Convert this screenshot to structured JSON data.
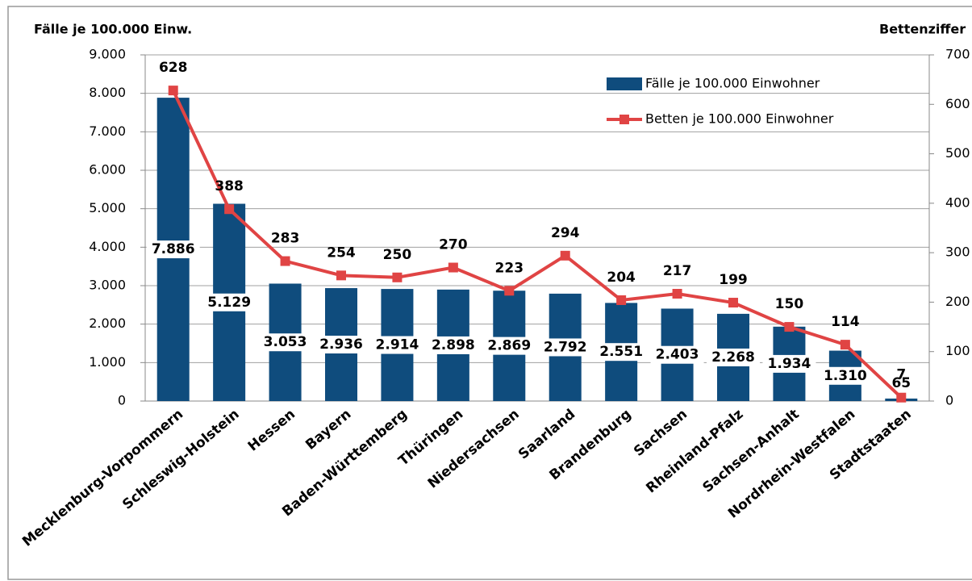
{
  "chart_data": {
    "type": "bar_line",
    "y_label": "Fälle je 100.000 Einw.",
    "y2_label": "Bettenziffer",
    "categories": [
      "Mecklenburg-Vorpommern",
      "Schleswig-Holstein",
      "Hessen",
      "Bayern",
      "Baden-Württemberg",
      "Thüringen",
      "Niedersachsen",
      "Saarland",
      "Brandenburg",
      "Sachsen",
      "Rheinland-Pfalz",
      "Sachsen-Anhalt",
      "Nordrhein-Westfalen",
      "Stadtstaaten"
    ],
    "series": [
      {
        "name": "Fälle je 100.000 Einwohner",
        "type": "bar",
        "color": "#0f4c7d",
        "values": [
          7886,
          5129,
          3053,
          2936,
          2914,
          2898,
          2869,
          2792,
          2551,
          2403,
          2268,
          1934,
          1310,
          65
        ],
        "value_labels": [
          "7.886",
          "5.129",
          "3.053",
          "2.936",
          "2.914",
          "2.898",
          "2.869",
          "2.792",
          "2.551",
          "2.403",
          "2.268",
          "1.934",
          "1.310",
          "65"
        ]
      },
      {
        "name": "Betten je 100.000 Einwohner",
        "type": "line",
        "axis": "y2",
        "color": "#e04444",
        "values": [
          628,
          388,
          283,
          254,
          250,
          270,
          223,
          294,
          204,
          217,
          199,
          150,
          114,
          7
        ]
      }
    ],
    "ylim": [
      0,
      9000
    ],
    "yticks": [
      0,
      {
        "value": 1000,
        "label": "1.000"
      },
      {
        "value": 2000,
        "label": "2.000"
      },
      {
        "value": 3000,
        "label": "3.000"
      },
      {
        "value": 4000,
        "label": "4.000"
      },
      {
        "value": 5000,
        "label": "5.000"
      },
      {
        "value": 6000,
        "label": "6.000"
      },
      {
        "value": 7000,
        "label": "7.000"
      },
      {
        "value": 8000,
        "label": "8.000"
      },
      {
        "value": 9000,
        "label": "9.000"
      }
    ],
    "y2lim": [
      0,
      700
    ],
    "y2ticks": [
      0,
      100,
      200,
      300,
      400,
      500,
      600,
      700
    ],
    "grid": true,
    "legend": "upper right"
  }
}
